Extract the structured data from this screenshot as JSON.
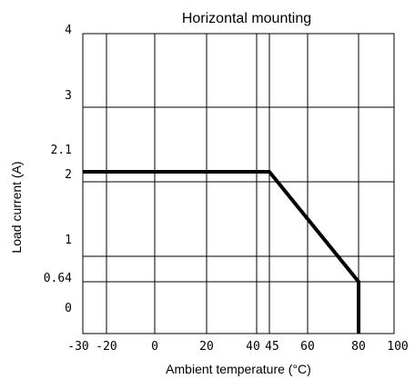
{
  "chart_data": {
    "type": "line",
    "title": "Horizontal mounting",
    "xlabel": "Ambient temperature (°C)",
    "ylabel": "Load current (A)",
    "xlim": [
      -30,
      100
    ],
    "ylim": [
      -0.25,
      4
    ],
    "x_ticks": [
      {
        "value": -30,
        "label": "-30"
      },
      {
        "value": -20,
        "label": "-20"
      },
      {
        "value": 0,
        "label": "0"
      },
      {
        "value": 20,
        "label": "20"
      },
      {
        "value": 40,
        "label": "40"
      },
      {
        "value": 45,
        "label": "45"
      },
      {
        "value": 60,
        "label": "60"
      },
      {
        "value": 80,
        "label": "80"
      },
      {
        "value": 100,
        "label": "100"
      }
    ],
    "y_ticks": [
      {
        "value": 0,
        "label": "0"
      },
      {
        "value": 0.64,
        "label": "0.64"
      },
      {
        "value": 1,
        "label": "1"
      },
      {
        "value": 2,
        "label": "2"
      },
      {
        "value": 2.1,
        "label": "2.1"
      },
      {
        "value": 3,
        "label": "3"
      },
      {
        "value": 4,
        "label": "4"
      }
    ],
    "grid": true,
    "series": [
      {
        "x": [
          -30,
          45,
          80,
          80
        ],
        "y": [
          2.1,
          2.1,
          0.64,
          -0.25
        ]
      }
    ]
  }
}
